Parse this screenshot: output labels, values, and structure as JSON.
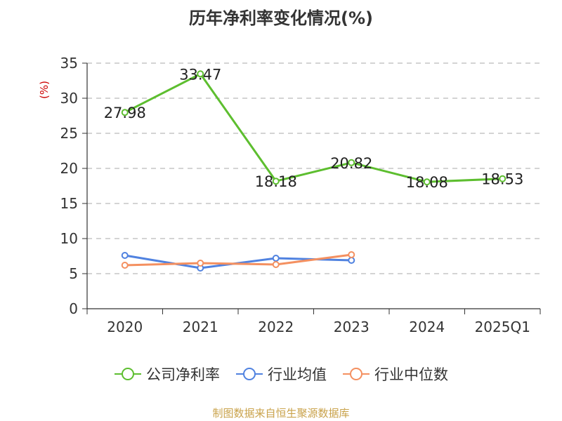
{
  "page": {
    "title": "历年净利率变化情况(%)",
    "footer": "制图数据来自恒生聚源数据库"
  },
  "colors": {
    "axis": "#333333",
    "grid": "#bbbbbb",
    "ylabel": "#cc0000",
    "text": "#333333"
  },
  "chart_data": {
    "type": "line",
    "title": "历年净利率变化情况(%)",
    "ylabel": "(%)",
    "xlabel": "",
    "categories": [
      "2020",
      "2021",
      "2022",
      "2023",
      "2024",
      "2025Q1"
    ],
    "ylim": [
      0,
      35
    ],
    "yticks": [
      0,
      5,
      10,
      15,
      20,
      25,
      30,
      35
    ],
    "grid": "horizontal dashed",
    "legend": "bottom-center",
    "series": [
      {
        "name": "公司净利率",
        "color": "#5dbe2f",
        "values": [
          27.98,
          33.47,
          18.18,
          20.82,
          18.08,
          18.53
        ],
        "labels": [
          "27.98",
          "33.47",
          "18.18",
          "20.82",
          "18.08",
          "18.53"
        ],
        "show_labels": true
      },
      {
        "name": "行业均值",
        "color": "#5082e0",
        "values": [
          7.6,
          5.8,
          7.2,
          6.9,
          null,
          null
        ],
        "show_labels": false
      },
      {
        "name": "行业中位数",
        "color": "#f49060",
        "values": [
          6.2,
          6.5,
          6.3,
          7.7,
          null,
          null
        ],
        "show_labels": false
      }
    ]
  }
}
